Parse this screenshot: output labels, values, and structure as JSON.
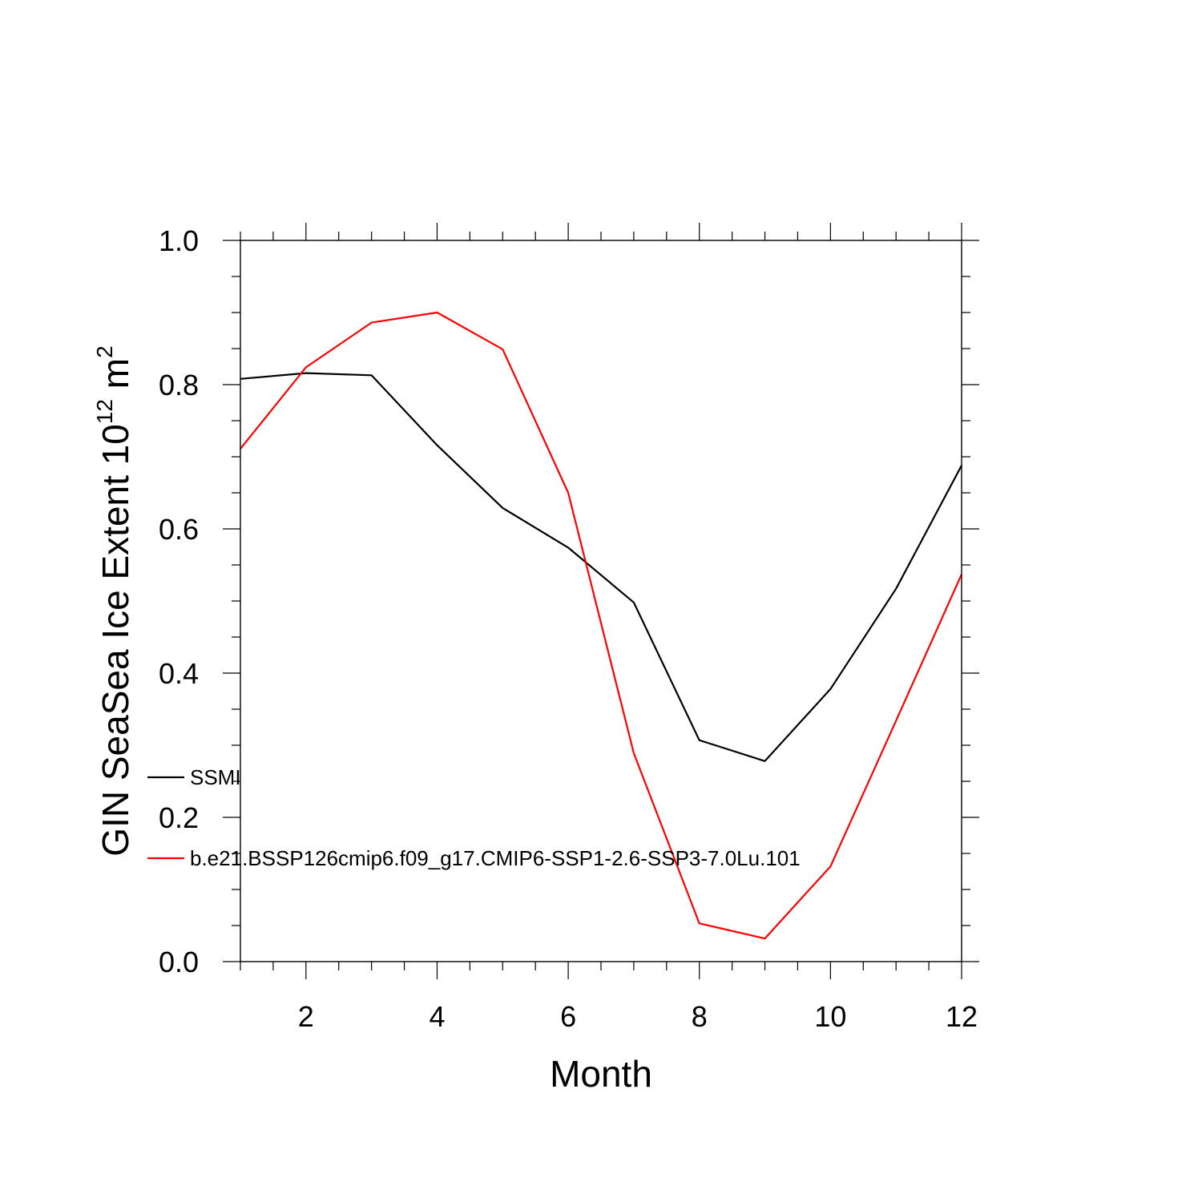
{
  "chart_data": {
    "type": "line",
    "title": "",
    "xlabel": "Month",
    "ylabel": {
      "text": "GIN SeaSea Ice Extent 10",
      "sup1": "12",
      "unit": " m",
      "sup2": "2"
    },
    "xlim": [
      1,
      12
    ],
    "ylim": [
      0.0,
      1.0
    ],
    "xticks": [
      2,
      4,
      6,
      8,
      10,
      12
    ],
    "xtick_labels": [
      "2",
      "4",
      "6",
      "8",
      "10",
      "12"
    ],
    "yticks": [
      0.0,
      0.2,
      0.4,
      0.6,
      0.8,
      1.0
    ],
    "ytick_labels": [
      "0.0",
      "0.2",
      "0.4",
      "0.6",
      "0.8",
      "1.0"
    ],
    "grid": false,
    "legend_position": "inside-lower-left",
    "x": [
      1,
      2,
      3,
      4,
      5,
      6,
      7,
      8,
      9,
      10,
      11,
      12
    ],
    "series": [
      {
        "name": "SSMI",
        "color": "#000000",
        "values": [
          0.808,
          0.816,
          0.813,
          0.716,
          0.629,
          0.574,
          0.498,
          0.307,
          0.278,
          0.378,
          0.517,
          0.688
        ]
      },
      {
        "name": "b.e21.BSSP126cmip6.f09_g17.CMIP6-SSP1-2.6-SSP3-7.0Lu.101",
        "color": "#ff0000",
        "values": [
          0.711,
          0.824,
          0.886,
          0.9,
          0.849,
          0.65,
          0.289,
          0.053,
          0.032,
          0.132,
          0.334,
          0.537
        ]
      }
    ]
  }
}
